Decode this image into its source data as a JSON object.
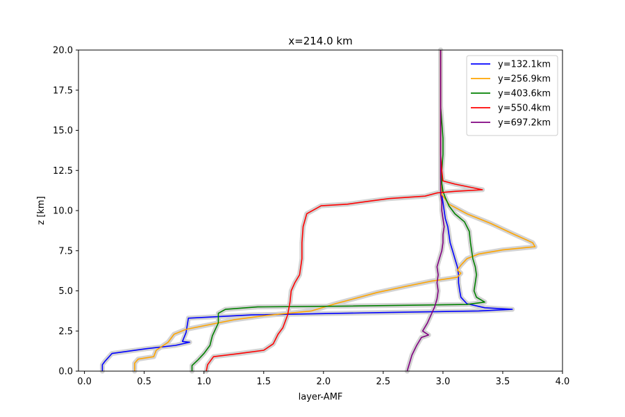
{
  "chart_data": {
    "type": "line",
    "title": "x=214.0 km",
    "xlabel": "layer-AMF",
    "ylabel": "z [km]",
    "xlim": [
      -0.05,
      4.0
    ],
    "ylim": [
      0,
      20
    ],
    "xticks": [
      0.0,
      0.5,
      1.0,
      1.5,
      2.0,
      2.5,
      3.0,
      3.5,
      4.0
    ],
    "xtick_labels": [
      "0.0",
      "0.5",
      "1.0",
      "1.5",
      "2.0",
      "2.5",
      "3.0",
      "3.5",
      "4.0"
    ],
    "yticks": [
      0.0,
      2.5,
      5.0,
      7.5,
      10.0,
      12.5,
      15.0,
      17.5,
      20.0
    ],
    "ytick_labels": [
      "0.0",
      "2.5",
      "5.0",
      "7.5",
      "10.0",
      "12.5",
      "15.0",
      "17.5",
      "20.0"
    ],
    "grid": false,
    "legend_position": "top-right",
    "uncertainty_band_color": "#d3d3d3",
    "series": [
      {
        "name": "y=132.1km",
        "color": "#0000ff",
        "points": [
          [
            0.15,
            0
          ],
          [
            0.15,
            0.4
          ],
          [
            0.17,
            0.6
          ],
          [
            0.23,
            1.1
          ],
          [
            0.52,
            1.4
          ],
          [
            0.76,
            1.6
          ],
          [
            0.88,
            1.8
          ],
          [
            0.82,
            1.85
          ],
          [
            0.85,
            2.4
          ],
          [
            0.87,
            3.3
          ],
          [
            1.4,
            3.5
          ],
          [
            2.5,
            3.65
          ],
          [
            3.3,
            3.75
          ],
          [
            3.58,
            3.85
          ],
          [
            3.35,
            3.95
          ],
          [
            3.2,
            4.2
          ],
          [
            3.15,
            4.6
          ],
          [
            3.14,
            5.0
          ],
          [
            3.13,
            5.5
          ],
          [
            3.13,
            6.0
          ],
          [
            3.12,
            6.5
          ],
          [
            3.1,
            7.0
          ],
          [
            3.08,
            7.5
          ],
          [
            3.06,
            8.0
          ],
          [
            3.05,
            8.5
          ],
          [
            3.04,
            9.0
          ],
          [
            3.02,
            9.5
          ],
          [
            3.01,
            10.0
          ],
          [
            3.0,
            10.5
          ],
          [
            2.99,
            11.0
          ],
          [
            2.99,
            11.5
          ],
          [
            2.98,
            12.0
          ],
          [
            2.98,
            13.0
          ],
          [
            2.98,
            14.0
          ],
          [
            2.98,
            15.0
          ],
          [
            2.98,
            16.0
          ],
          [
            2.98,
            17.0
          ],
          [
            2.98,
            18.0
          ],
          [
            2.98,
            19.0
          ],
          [
            2.98,
            20.0
          ]
        ]
      },
      {
        "name": "y=256.9km",
        "color": "#ffa500",
        "points": [
          [
            0.42,
            0
          ],
          [
            0.42,
            0.5
          ],
          [
            0.45,
            0.75
          ],
          [
            0.58,
            0.9
          ],
          [
            0.6,
            1.3
          ],
          [
            0.7,
            1.8
          ],
          [
            0.75,
            2.3
          ],
          [
            0.85,
            2.6
          ],
          [
            1.05,
            2.9
          ],
          [
            1.25,
            3.2
          ],
          [
            1.5,
            3.45
          ],
          [
            1.9,
            3.75
          ],
          [
            2.1,
            4.2
          ],
          [
            2.25,
            4.5
          ],
          [
            2.45,
            4.9
          ],
          [
            2.7,
            5.3
          ],
          [
            2.9,
            5.6
          ],
          [
            3.12,
            5.85
          ],
          [
            3.15,
            6.1
          ],
          [
            3.12,
            6.3
          ],
          [
            3.15,
            6.6
          ],
          [
            3.2,
            7.0
          ],
          [
            3.3,
            7.3
          ],
          [
            3.5,
            7.55
          ],
          [
            3.77,
            7.75
          ],
          [
            3.75,
            8.0
          ],
          [
            3.6,
            8.5
          ],
          [
            3.4,
            9.2
          ],
          [
            3.2,
            9.8
          ],
          [
            3.05,
            10.4
          ],
          [
            2.99,
            11.0
          ],
          [
            2.98,
            12.0
          ],
          [
            2.98,
            13.0
          ],
          [
            2.98,
            14.0
          ],
          [
            2.98,
            15.0
          ],
          [
            2.98,
            16.0
          ],
          [
            2.98,
            17.0
          ],
          [
            2.98,
            18.0
          ],
          [
            2.98,
            19.0
          ],
          [
            2.98,
            20.0
          ]
        ]
      },
      {
        "name": "y=403.6km",
        "color": "#008000",
        "points": [
          [
            0.9,
            0
          ],
          [
            0.9,
            0.35
          ],
          [
            0.95,
            0.7
          ],
          [
            1.0,
            1.1
          ],
          [
            1.05,
            1.6
          ],
          [
            1.07,
            2.2
          ],
          [
            1.12,
            3.0
          ],
          [
            1.12,
            3.6
          ],
          [
            1.18,
            3.85
          ],
          [
            1.45,
            4.0
          ],
          [
            2.2,
            4.05
          ],
          [
            3.2,
            4.15
          ],
          [
            3.35,
            4.3
          ],
          [
            3.28,
            4.6
          ],
          [
            3.26,
            5.0
          ],
          [
            3.27,
            5.5
          ],
          [
            3.28,
            6.0
          ],
          [
            3.27,
            6.5
          ],
          [
            3.25,
            7.0
          ],
          [
            3.24,
            7.5
          ],
          [
            3.23,
            8.0
          ],
          [
            3.22,
            8.7
          ],
          [
            3.18,
            9.3
          ],
          [
            3.1,
            9.8
          ],
          [
            3.05,
            10.3
          ],
          [
            3.02,
            10.8
          ],
          [
            3.0,
            11.2
          ],
          [
            2.99,
            11.7
          ],
          [
            2.99,
            12.5
          ],
          [
            3.0,
            13.5
          ],
          [
            3.0,
            14.5
          ],
          [
            2.99,
            15.5
          ],
          [
            2.98,
            16.5
          ],
          [
            2.98,
            18.0
          ],
          [
            2.98,
            19.0
          ],
          [
            2.98,
            20.0
          ]
        ]
      },
      {
        "name": "y=550.4km",
        "color": "#ff0000",
        "points": [
          [
            1.02,
            0
          ],
          [
            1.03,
            0.4
          ],
          [
            1.08,
            0.9
          ],
          [
            1.3,
            1.1
          ],
          [
            1.5,
            1.3
          ],
          [
            1.58,
            1.7
          ],
          [
            1.62,
            2.3
          ],
          [
            1.66,
            2.7
          ],
          [
            1.7,
            3.5
          ],
          [
            1.72,
            4.3
          ],
          [
            1.73,
            5.0
          ],
          [
            1.76,
            5.5
          ],
          [
            1.8,
            6.0
          ],
          [
            1.82,
            7.0
          ],
          [
            1.82,
            8.0
          ],
          [
            1.83,
            9.0
          ],
          [
            1.86,
            9.8
          ],
          [
            1.98,
            10.3
          ],
          [
            2.2,
            10.4
          ],
          [
            2.4,
            10.6
          ],
          [
            2.55,
            10.75
          ],
          [
            2.85,
            10.9
          ],
          [
            2.95,
            11.1
          ],
          [
            3.1,
            11.2
          ],
          [
            3.33,
            11.3
          ],
          [
            3.1,
            11.65
          ],
          [
            3.0,
            11.85
          ],
          [
            2.99,
            12.5
          ],
          [
            2.98,
            13.5
          ],
          [
            2.98,
            15.0
          ],
          [
            2.98,
            16.5
          ],
          [
            2.98,
            18.0
          ],
          [
            2.98,
            19.0
          ],
          [
            2.98,
            20.0
          ]
        ]
      },
      {
        "name": "y=697.2km",
        "color": "#800080",
        "points": [
          [
            2.7,
            0
          ],
          [
            2.72,
            0.5
          ],
          [
            2.74,
            1.0
          ],
          [
            2.78,
            1.6
          ],
          [
            2.82,
            2.1
          ],
          [
            2.88,
            2.25
          ],
          [
            2.83,
            2.5
          ],
          [
            2.87,
            3.0
          ],
          [
            2.9,
            3.5
          ],
          [
            2.93,
            4.0
          ],
          [
            2.95,
            4.5
          ],
          [
            2.96,
            5.0
          ],
          [
            2.95,
            5.5
          ],
          [
            2.96,
            6.0
          ],
          [
            2.95,
            6.5
          ],
          [
            2.97,
            7.0
          ],
          [
            2.99,
            7.5
          ],
          [
            3.0,
            8.0
          ],
          [
            3.0,
            8.5
          ],
          [
            3.01,
            9.0
          ],
          [
            3.0,
            9.5
          ],
          [
            2.99,
            10.0
          ],
          [
            2.99,
            10.5
          ],
          [
            2.98,
            11.0
          ],
          [
            2.98,
            12.0
          ],
          [
            2.98,
            13.0
          ],
          [
            2.98,
            14.0
          ],
          [
            2.98,
            15.0
          ],
          [
            2.98,
            16.0
          ],
          [
            2.98,
            17.0
          ],
          [
            2.98,
            18.0
          ],
          [
            2.98,
            19.0
          ],
          [
            2.98,
            20.0
          ]
        ]
      }
    ]
  }
}
